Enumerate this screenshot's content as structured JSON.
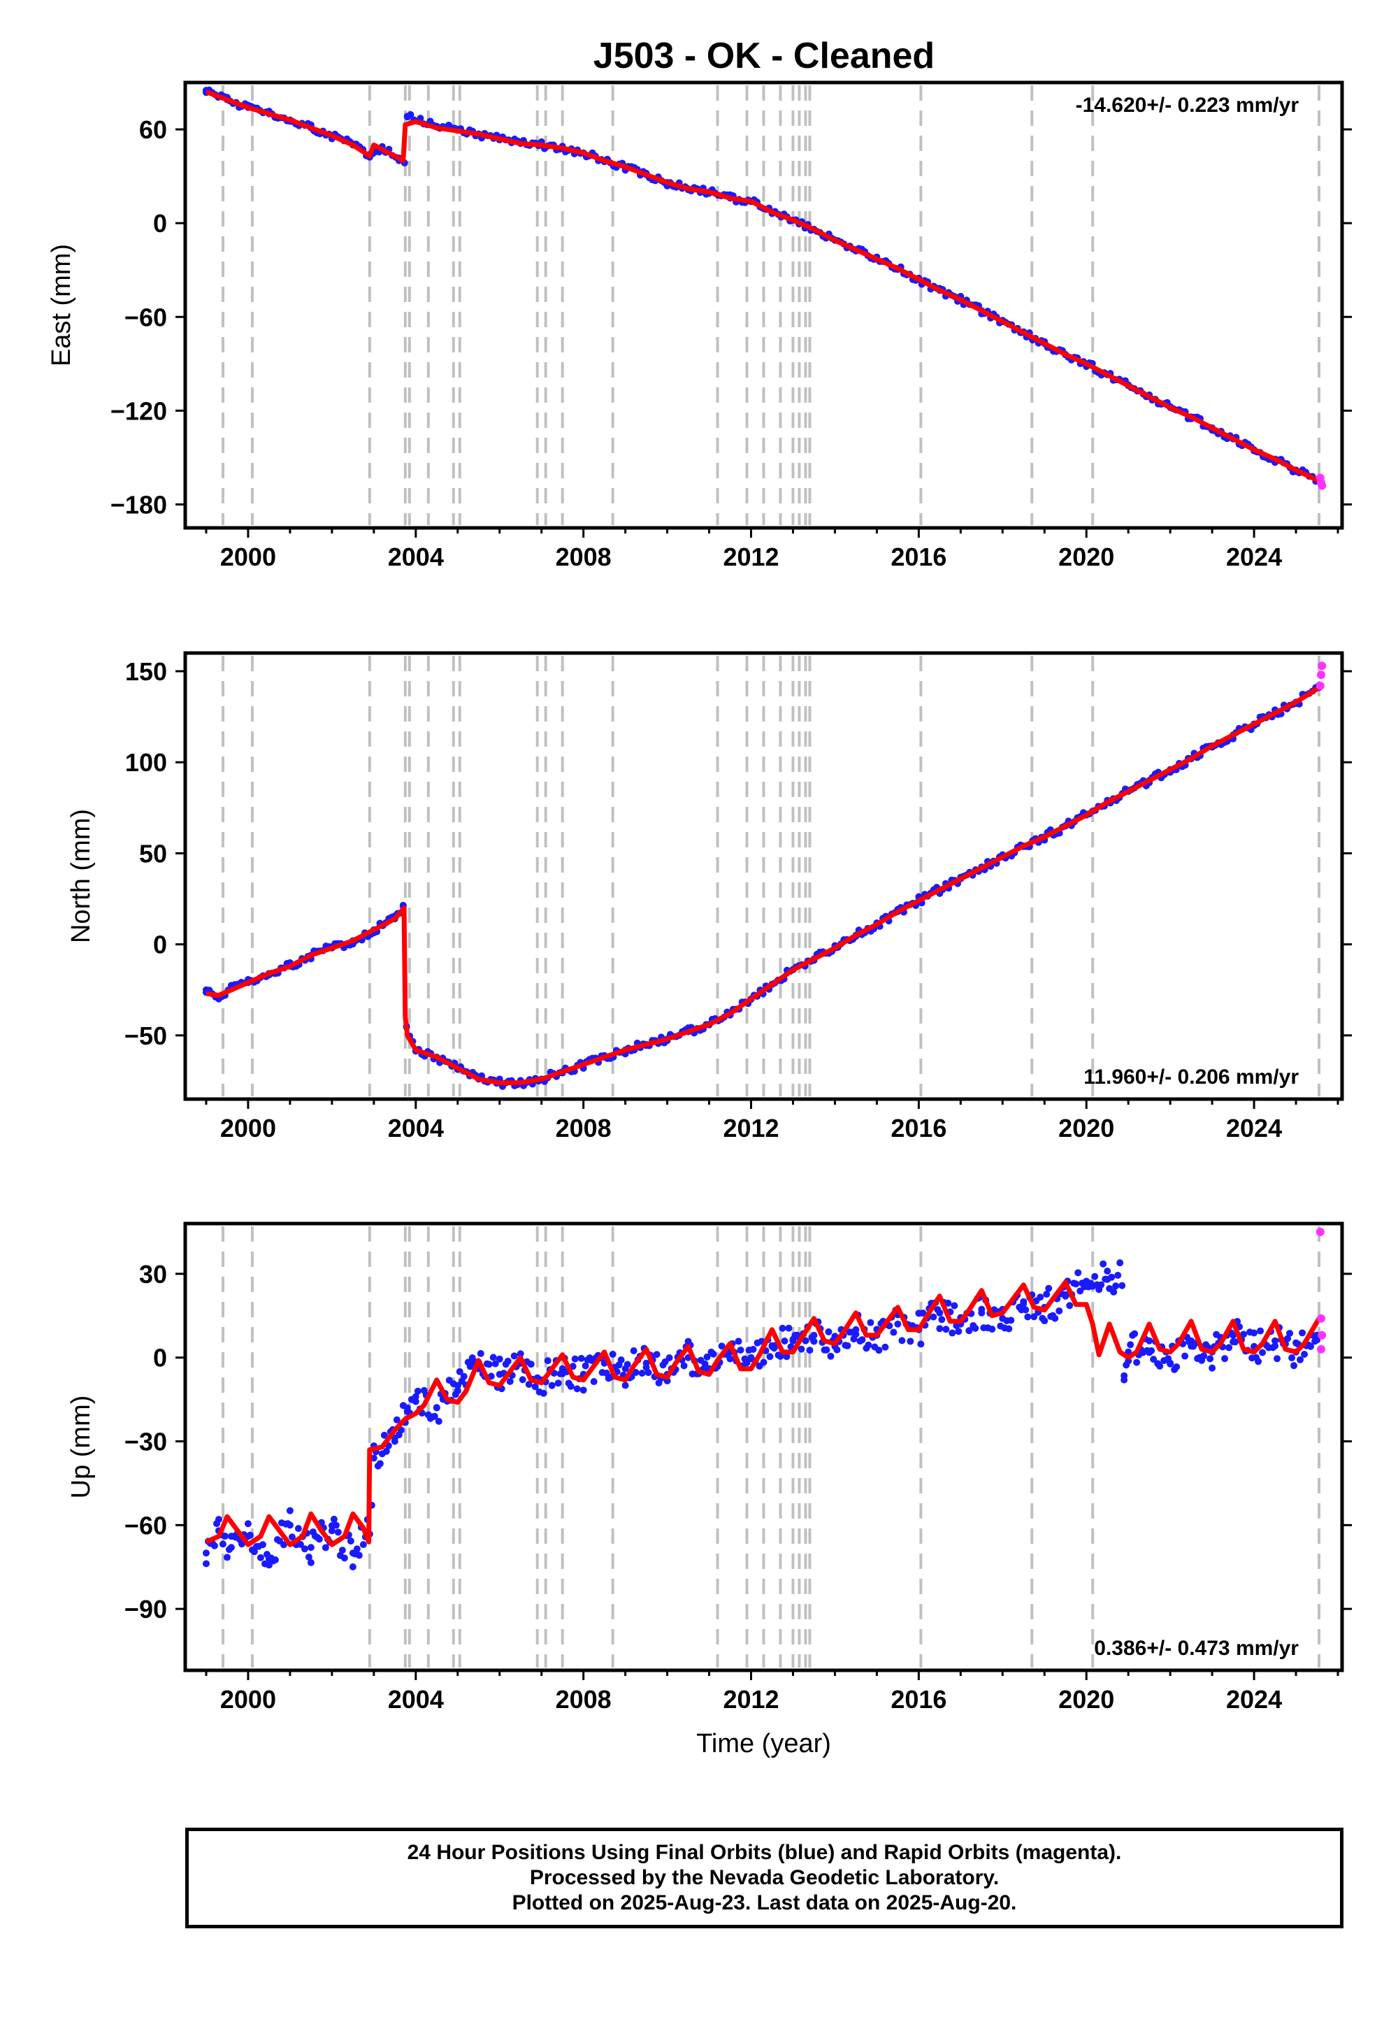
{
  "title": "J503  - OK - Cleaned",
  "footer": {
    "line1": "24 Hour Positions Using Final Orbits (blue) and Rapid Orbits (magenta).",
    "line2": "Processed by the Nevada Geodetic Laboratory.",
    "line3": "Plotted on 2025-Aug-23. Last data on 2025-Aug-20."
  },
  "colors": {
    "final_orbits": "#1a1aff",
    "rapid_orbits": "#ff33ff",
    "model": "#ff0000",
    "event_lines": "#c0c0c0"
  },
  "chart_data": [
    {
      "type": "scatter",
      "ylabel": "East (mm)",
      "xlabel": "",
      "rate_label": "-14.620+/- 0.223 mm/yr",
      "rate_position": "top-right",
      "xlim": [
        1998.5,
        2026.1
      ],
      "ylim": [
        -195,
        90
      ],
      "xticks": [
        2000,
        2004,
        2008,
        2012,
        2016,
        2020,
        2024
      ],
      "xtick_labels": [
        "2000",
        "2004",
        "2008",
        "2012",
        "2016",
        "2020",
        "2024"
      ],
      "yticks": [
        60,
        0,
        -60,
        -120,
        -180
      ],
      "ytick_labels": [
        "60",
        "0",
        "−60",
        "−120",
        "−180"
      ],
      "event_lines": [
        1999.4,
        2000.1,
        2002.9,
        2003.75,
        2003.85,
        2004.3,
        2004.9,
        2005.05,
        2006.9,
        2007.1,
        2007.5,
        2008.7,
        2011.2,
        2011.9,
        2012.3,
        2012.7,
        2013.0,
        2013.15,
        2013.3,
        2013.4,
        2016.05,
        2018.7,
        2020.15,
        2025.55
      ],
      "series": [
        {
          "color": "#1a1aff",
          "kind": "points",
          "x": [
            1999.0,
            1999.5,
            2000.0,
            2000.5,
            2001.0,
            2001.5,
            2002.0,
            2002.5,
            2002.9,
            2003.2,
            2003.6,
            2003.8,
            2004.5,
            2005.0,
            2005.5,
            2006.0,
            2006.5,
            2007.0,
            2007.5,
            2008.0,
            2008.5,
            2009.0,
            2009.5,
            2010.0,
            2010.5,
            2011.0,
            2011.5,
            2012.0,
            2012.5,
            2013.0,
            2013.5,
            2014.0,
            2014.5,
            2015.0,
            2015.5,
            2016.0,
            2016.5,
            2017.0,
            2017.5,
            2018.0,
            2018.5,
            2019.0,
            2019.5,
            2020.0,
            2020.5,
            2021.0,
            2021.5,
            2022.0,
            2022.5,
            2023.0,
            2023.5,
            2024.0,
            2024.5,
            2025.0,
            2025.55
          ],
          "y": [
            85,
            79,
            74,
            70,
            66,
            61,
            56,
            50,
            44,
            49,
            40,
            68,
            62,
            60,
            57,
            54,
            51,
            50,
            48,
            45,
            40,
            36,
            31,
            26,
            22,
            20,
            16,
            14,
            7,
            2,
            -4,
            -11,
            -17,
            -23,
            -29,
            -36,
            -43,
            -49,
            -56,
            -63,
            -70,
            -77,
            -84,
            -90,
            -97,
            -104,
            -111,
            -118,
            -124,
            -131,
            -138,
            -145,
            -151,
            -158,
            -165
          ]
        },
        {
          "color": "#ff0000",
          "kind": "line",
          "x": [
            1999.0,
            1999.5,
            2000.0,
            2000.5,
            2001.0,
            2001.5,
            2002.0,
            2002.5,
            2002.9,
            2003.0,
            2003.7,
            2003.75,
            2004.0,
            2004.5,
            2005.0,
            2005.5,
            2006.0,
            2006.5,
            2007.0,
            2007.5,
            2008.0,
            2008.5,
            2009.0,
            2009.5,
            2010.0,
            2010.5,
            2011.0,
            2011.5,
            2012.0,
            2012.5,
            2013.0,
            2013.5,
            2014.0,
            2014.5,
            2015.0,
            2015.5,
            2016.0,
            2016.5,
            2017.0,
            2017.5,
            2018.0,
            2018.5,
            2019.0,
            2019.5,
            2020.0,
            2020.5,
            2021.0,
            2021.5,
            2022.0,
            2022.5,
            2023.0,
            2023.5,
            2024.0,
            2024.5,
            2025.0,
            2025.55
          ],
          "y": [
            84,
            79,
            74,
            70,
            66,
            61,
            56,
            50,
            43,
            50,
            40,
            63,
            65,
            61,
            59,
            57,
            54,
            51,
            50,
            48,
            45,
            40,
            36,
            31,
            26,
            22,
            20,
            16,
            14,
            7,
            2,
            -4,
            -11,
            -17,
            -23,
            -29,
            -36,
            -43,
            -49,
            -56,
            -63,
            -70,
            -77,
            -84,
            -90,
            -97,
            -104,
            -111,
            -118,
            -124,
            -131,
            -138,
            -145,
            -151,
            -158,
            -165
          ]
        },
        {
          "color": "#ff33ff",
          "kind": "points",
          "x": [
            2025.58,
            2025.6,
            2025.62
          ],
          "y": [
            -163,
            -166,
            -168
          ]
        }
      ]
    },
    {
      "type": "scatter",
      "ylabel": "North (mm)",
      "xlabel": "",
      "rate_label": "11.960+/- 0.206 mm/yr",
      "rate_position": "bottom-right",
      "xlim": [
        1998.5,
        2026.1
      ],
      "ylim": [
        -85,
        160
      ],
      "xticks": [
        2000,
        2004,
        2008,
        2012,
        2016,
        2020,
        2024
      ],
      "xtick_labels": [
        "2000",
        "2004",
        "2008",
        "2012",
        "2016",
        "2020",
        "2024"
      ],
      "yticks": [
        150,
        100,
        50,
        0,
        -50
      ],
      "ytick_labels": [
        "150",
        "100",
        "50",
        "0",
        "−50"
      ],
      "event_lines": [
        1999.4,
        2000.1,
        2002.9,
        2003.75,
        2003.85,
        2004.3,
        2004.9,
        2005.05,
        2006.9,
        2007.1,
        2007.5,
        2008.7,
        2011.2,
        2011.9,
        2012.3,
        2012.7,
        2013.0,
        2013.15,
        2013.3,
        2013.4,
        2016.05,
        2018.7,
        2020.15,
        2025.55
      ],
      "series": [
        {
          "color": "#1a1aff",
          "kind": "points",
          "x": [
            1999.0,
            1999.3,
            1999.6,
            2000.0,
            2000.5,
            2001.0,
            2001.5,
            2002.0,
            2002.5,
            2003.0,
            2003.5,
            2003.7,
            2003.78,
            2004.0,
            2004.5,
            2005.0,
            2005.5,
            2006.0,
            2006.5,
            2007.0,
            2007.5,
            2008.0,
            2008.5,
            2009.0,
            2009.5,
            2010.0,
            2010.5,
            2011.0,
            2011.5,
            2012.0,
            2012.5,
            2013.0,
            2013.5,
            2014.0,
            2014.5,
            2015.0,
            2015.5,
            2016.0,
            2016.5,
            2017.0,
            2017.5,
            2018.0,
            2018.5,
            2019.0,
            2019.5,
            2020.0,
            2020.5,
            2021.0,
            2021.5,
            2022.0,
            2022.5,
            2023.0,
            2023.5,
            2024.0,
            2024.5,
            2025.0,
            2025.55
          ],
          "y": [
            -25,
            -30,
            -24,
            -21,
            -16,
            -12,
            -6,
            -2,
            2,
            8,
            14,
            21,
            -45,
            -58,
            -62,
            -68,
            -74,
            -76,
            -76,
            -74,
            -70,
            -66,
            -62,
            -58,
            -55,
            -52,
            -48,
            -44,
            -38,
            -30,
            -22,
            -14,
            -8,
            -2,
            5,
            11,
            18,
            24,
            30,
            36,
            42,
            48,
            54,
            59,
            65,
            71,
            78,
            84,
            90,
            96,
            102,
            109,
            115,
            121,
            127,
            133,
            141
          ]
        },
        {
          "color": "#ff0000",
          "kind": "line",
          "x": [
            1999.0,
            1999.3,
            1999.6,
            2000.0,
            2000.5,
            2001.0,
            2001.5,
            2002.0,
            2002.5,
            2003.0,
            2003.5,
            2003.72,
            2003.75,
            2003.8,
            2004.0,
            2004.5,
            2005.0,
            2005.5,
            2006.0,
            2006.5,
            2007.0,
            2007.5,
            2008.0,
            2008.5,
            2009.0,
            2009.5,
            2010.0,
            2010.5,
            2011.0,
            2011.5,
            2012.0,
            2012.5,
            2013.0,
            2013.5,
            2014.0,
            2014.5,
            2015.0,
            2015.5,
            2016.0,
            2016.5,
            2017.0,
            2017.5,
            2018.0,
            2018.5,
            2019.0,
            2019.5,
            2020.0,
            2020.5,
            2021.0,
            2021.5,
            2022.0,
            2022.5,
            2023.0,
            2023.5,
            2024.0,
            2024.5,
            2025.0,
            2025.55
          ],
          "y": [
            -27,
            -28,
            -25,
            -21,
            -16,
            -12,
            -6,
            -2,
            2,
            8,
            14,
            20,
            -40,
            -50,
            -58,
            -62,
            -68,
            -74,
            -76,
            -76,
            -74,
            -70,
            -66,
            -62,
            -58,
            -55,
            -52,
            -48,
            -44,
            -38,
            -30,
            -22,
            -14,
            -8,
            -2,
            5,
            11,
            18,
            24,
            30,
            36,
            42,
            48,
            54,
            59,
            65,
            71,
            78,
            84,
            90,
            96,
            102,
            109,
            115,
            121,
            127,
            133,
            141
          ]
        },
        {
          "color": "#ff33ff",
          "kind": "points",
          "x": [
            2025.58,
            2025.6,
            2025.62
          ],
          "y": [
            142,
            148,
            153
          ]
        }
      ]
    },
    {
      "type": "scatter",
      "ylabel": "Up (mm)",
      "xlabel": "Time (year)",
      "rate_label": "0.386+/- 0.473 mm/yr",
      "rate_position": "bottom-right",
      "xlim": [
        1998.5,
        2026.1
      ],
      "ylim": [
        -112,
        48
      ],
      "xticks": [
        2000,
        2004,
        2008,
        2012,
        2016,
        2020,
        2024
      ],
      "xtick_labels": [
        "2000",
        "2004",
        "2008",
        "2012",
        "2016",
        "2020",
        "2024"
      ],
      "yticks": [
        30,
        0,
        -30,
        -60,
        -90
      ],
      "ytick_labels": [
        "30",
        "0",
        "−30",
        "−60",
        "−90"
      ],
      "event_lines": [
        1999.4,
        2000.1,
        2002.9,
        2003.75,
        2003.85,
        2004.3,
        2004.9,
        2005.05,
        2006.9,
        2007.1,
        2007.5,
        2008.7,
        2011.2,
        2011.9,
        2012.3,
        2012.7,
        2013.0,
        2013.15,
        2013.3,
        2013.4,
        2016.05,
        2018.7,
        2020.15,
        2025.55
      ],
      "series": [
        {
          "color": "#1a1aff",
          "kind": "points",
          "x": [
            1999.0,
            1999.3,
            1999.6,
            2000.0,
            2000.5,
            2001.0,
            2001.5,
            2002.0,
            2002.5,
            2002.85,
            2003.0,
            2003.5,
            2003.8,
            2004.0,
            2004.5,
            2005.0,
            2005.5,
            2006.0,
            2006.5,
            2007.0,
            2007.5,
            2008.0,
            2008.5,
            2009.0,
            2009.5,
            2010.0,
            2010.5,
            2011.0,
            2011.5,
            2012.0,
            2012.5,
            2013.0,
            2013.5,
            2014.0,
            2014.5,
            2015.0,
            2015.5,
            2016.0,
            2016.5,
            2017.0,
            2017.5,
            2018.0,
            2018.5,
            2019.0,
            2019.5,
            2020.0,
            2020.5,
            2020.9,
            2021.0,
            2021.5,
            2022.0,
            2022.5,
            2023.0,
            2023.5,
            2024.0,
            2024.5,
            2025.0,
            2025.5
          ],
          "y": [
            -70,
            -62,
            -68,
            -64,
            -72,
            -60,
            -68,
            -62,
            -70,
            -58,
            -36,
            -30,
            -18,
            -14,
            -18,
            -10,
            -4,
            -6,
            -2,
            -8,
            -4,
            -6,
            -2,
            -4,
            -2,
            -6,
            0,
            -4,
            2,
            0,
            4,
            6,
            8,
            4,
            10,
            8,
            12,
            10,
            16,
            12,
            16,
            14,
            20,
            18,
            22,
            26,
            28,
            -8,
            2,
            6,
            -2,
            6,
            2,
            8,
            4,
            6,
            2,
            8
          ]
        },
        {
          "color": "#ff0000",
          "kind": "line",
          "x": [
            1999.0,
            1999.3,
            1999.5,
            1999.75,
            2000.0,
            2000.3,
            2000.5,
            2000.75,
            2001.0,
            2001.3,
            2001.5,
            2001.75,
            2002.0,
            2002.3,
            2002.5,
            2002.75,
            2002.88,
            2002.9,
            2003.2,
            2003.5,
            2003.75,
            2004.0,
            2004.2,
            2004.5,
            2004.75,
            2005.0,
            2005.2,
            2005.5,
            2005.75,
            2006.0,
            2006.2,
            2006.5,
            2006.75,
            2007.0,
            2007.2,
            2007.5,
            2007.75,
            2008.0,
            2008.2,
            2008.5,
            2008.75,
            2009.0,
            2009.2,
            2009.5,
            2009.75,
            2010.0,
            2010.2,
            2010.5,
            2010.75,
            2011.0,
            2011.2,
            2011.5,
            2011.75,
            2012.0,
            2012.2,
            2012.5,
            2012.75,
            2013.0,
            2013.2,
            2013.5,
            2013.75,
            2014.0,
            2014.2,
            2014.5,
            2014.75,
            2015.0,
            2015.2,
            2015.5,
            2015.75,
            2016.0,
            2016.2,
            2016.5,
            2016.75,
            2017.0,
            2017.2,
            2017.5,
            2017.75,
            2018.0,
            2018.2,
            2018.5,
            2018.75,
            2019.0,
            2019.2,
            2019.5,
            2019.75,
            2020.0,
            2020.15,
            2020.3,
            2020.55,
            2020.8,
            2021.0,
            2021.2,
            2021.5,
            2021.75,
            2022.0,
            2022.2,
            2022.5,
            2022.75,
            2023.0,
            2023.2,
            2023.5,
            2023.75,
            2024.0,
            2024.2,
            2024.5,
            2024.75,
            2025.0,
            2025.2,
            2025.55
          ],
          "y": [
            -66,
            -64,
            -57,
            -62,
            -67,
            -64,
            -57,
            -62,
            -67,
            -64,
            -56,
            -62,
            -67,
            -64,
            -56,
            -61,
            -66,
            -33,
            -32,
            -26,
            -22,
            -20,
            -17,
            -8,
            -15,
            -16,
            -12,
            -1,
            -9,
            -10,
            -6,
            0,
            -8,
            -9,
            -5,
            1,
            -7,
            -8,
            -4,
            2,
            -7,
            -8,
            -3,
            3,
            -6,
            -7,
            -2,
            4,
            -5,
            -6,
            -1,
            5,
            -4,
            -4,
            1,
            10,
            2,
            2,
            7,
            14,
            6,
            5,
            9,
            16,
            8,
            8,
            12,
            18,
            10,
            10,
            15,
            22,
            13,
            13,
            17,
            24,
            15,
            16,
            20,
            26,
            18,
            17,
            21,
            27,
            19,
            19,
            12,
            1,
            12,
            2,
            0,
            2,
            12,
            3,
            2,
            5,
            13,
            3,
            2,
            5,
            13,
            3,
            2,
            5,
            13,
            3,
            2,
            5,
            14
          ]
        },
        {
          "color": "#ff33ff",
          "kind": "points",
          "x": [
            2025.58,
            2025.6,
            2025.62,
            2025.6
          ],
          "y": [
            45,
            14,
            8,
            3
          ]
        }
      ]
    }
  ]
}
